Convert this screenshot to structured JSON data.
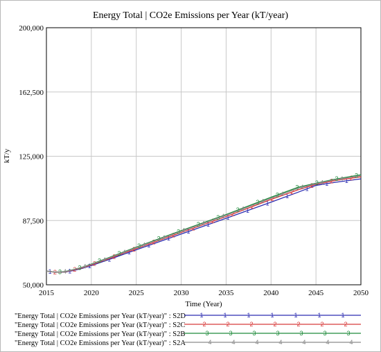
{
  "chart_data": {
    "type": "line",
    "title": "Energy Total | CO2e Emissions per Year (kT/year)",
    "xlabel": "Time (Year)",
    "ylabel": "kT/y",
    "xlim": [
      2015,
      2050
    ],
    "ylim": [
      50000,
      200000
    ],
    "xticks": [
      "2015",
      "2020",
      "2025",
      "2030",
      "2035",
      "2040",
      "2045",
      "2050"
    ],
    "yticks": [
      "200,000",
      "162,500",
      "125,000",
      "87,500",
      "50,000"
    ],
    "grid": true,
    "legend_position": "bottom",
    "x": [
      2015,
      2016,
      2017,
      2018,
      2019,
      2020,
      2022,
      2025,
      2030,
      2035,
      2040,
      2043,
      2045,
      2047,
      2050
    ],
    "series": [
      {
        "name": "\"Energy Total | CO2e Emissions per Year (kT/year)\" : S2D",
        "marker": "1",
        "color": "#2b2bb0",
        "values": [
          58000,
          57300,
          57400,
          58300,
          59600,
          61200,
          64800,
          70400,
          79600,
          88800,
          98200,
          104000,
          108000,
          109700,
          111800
        ]
      },
      {
        "name": "\"Energy Total | CO2e Emissions per Year (kT/year)\" : S2C",
        "marker": "2",
        "color": "#d83a3a",
        "values": [
          58000,
          57300,
          57500,
          58600,
          59900,
          61600,
          65300,
          71100,
          80500,
          89800,
          99800,
          105400,
          108600,
          110700,
          113000
        ]
      },
      {
        "name": "\"Energy Total | CO2e Emissions per Year (kT/year)\" : S2B",
        "marker": "3",
        "color": "#1e8a3a",
        "values": [
          58000,
          57400,
          57700,
          58900,
          60300,
          62100,
          66000,
          72000,
          81600,
          91000,
          101100,
          106900,
          109300,
          111500,
          114200
        ]
      },
      {
        "name": "\"Energy Total | CO2e Emissions per Year (kT/year)\" : S2A",
        "marker": "4",
        "color": "#8a8a8a",
        "values": [
          58000,
          57400,
          57600,
          58800,
          60200,
          61900,
          65700,
          71700,
          81200,
          90600,
          100500,
          106300,
          109000,
          111200,
          113700
        ]
      }
    ]
  }
}
